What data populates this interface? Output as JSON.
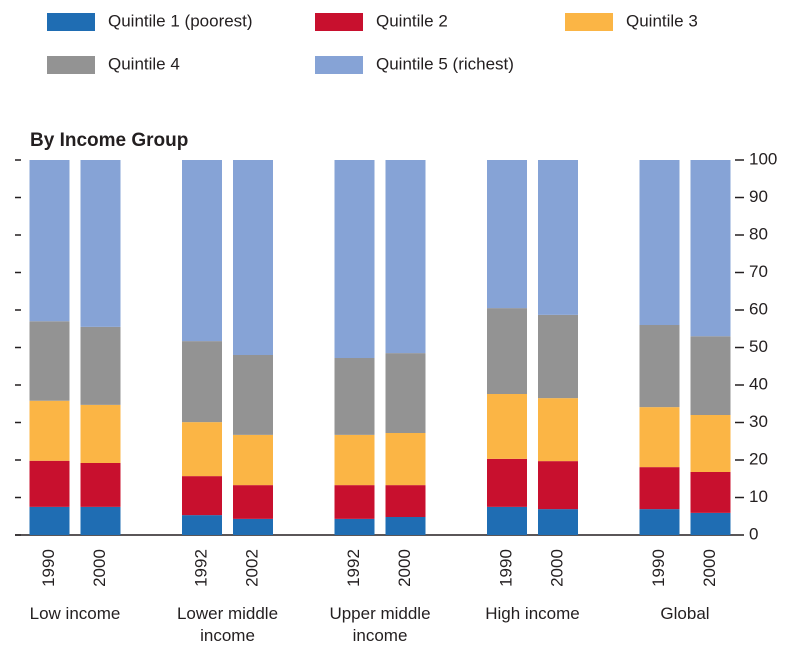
{
  "chart_data": {
    "type": "stacked-bar",
    "subtitle": "By Income Group",
    "categories": [
      "1990",
      "2000",
      "1992",
      "2002",
      "1992",
      "2000",
      "1990",
      "2000",
      "1990",
      "2000"
    ],
    "groups": [
      "Low income",
      "Lower middle income",
      "Upper middle income",
      "High income",
      "Global"
    ],
    "series": [
      {
        "name": "Quintile 1 (poorest)",
        "color": "#1f6db3",
        "values": [
          7.5,
          7.5,
          5.3,
          4.3,
          4.3,
          4.8,
          7.5,
          6.9,
          6.9,
          5.9
        ]
      },
      {
        "name": "Quintile 2",
        "color": "#c8102e",
        "values": [
          12.3,
          11.7,
          10.4,
          9,
          9,
          8.5,
          12.8,
          12.8,
          11.2,
          10.9
        ]
      },
      {
        "name": "Quintile 3",
        "color": "#fbb545",
        "values": [
          16,
          15.5,
          14.4,
          13.4,
          13.4,
          13.9,
          17.3,
          16.8,
          16,
          15.2
        ]
      },
      {
        "name": "Quintile 4",
        "color": "#939393",
        "values": [
          21.2,
          20.8,
          21.6,
          21.3,
          20.5,
          21.3,
          22.9,
          22.2,
          21.9,
          21
        ]
      },
      {
        "name": "Quintile 5 (richest)",
        "color": "#86a3d6",
        "values": [
          43,
          44.5,
          48.3,
          52,
          52.8,
          51.5,
          39.5,
          41.3,
          44,
          47
        ]
      }
    ],
    "ylim": [
      0,
      100
    ],
    "yticks": [
      0,
      10,
      20,
      30,
      40,
      50,
      60,
      70,
      80,
      90,
      100
    ],
    "grid": false
  }
}
